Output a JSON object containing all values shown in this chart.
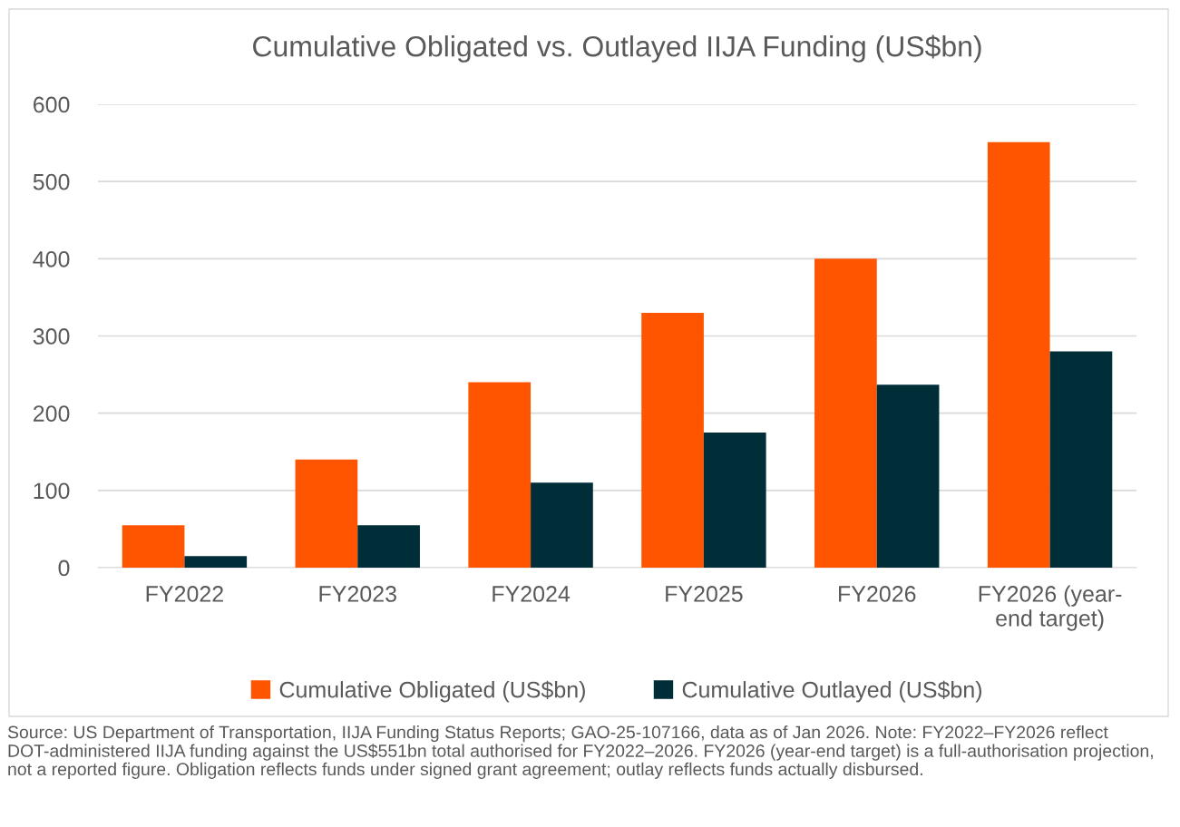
{
  "chart_data": {
    "type": "bar",
    "title": "Cumulative Obligated vs. Outlayed IIJA Funding (US$bn)",
    "categories": [
      "FY2022",
      "FY2023",
      "FY2024",
      "FY2025",
      "FY2026",
      "FY2026 (year-\nend target)"
    ],
    "series": [
      {
        "name": "Cumulative Obligated (US$bn)",
        "color": "#ff5500",
        "values": [
          55,
          140,
          240,
          330,
          400,
          551
        ]
      },
      {
        "name": "Cumulative Outlayed (US$bn)",
        "color": "#002e38",
        "values": [
          15,
          55,
          110,
          175,
          237,
          280
        ]
      }
    ],
    "ylim": [
      0,
      600
    ],
    "yticks": [
      0,
      100,
      200,
      300,
      400,
      500,
      600
    ],
    "grid": "y",
    "legend": "bottom",
    "annotations": [
      "Source: US Department of Transportation, IIJA Funding Status Reports; GAO-25-107166, data as of Jan 2026. Note: FY2022–FY2026 reflect DOT-administered IIJA funding against the US$551bn total authorised for FY2022–2026. FY2026 (year-end target) is a full-authorisation projection, not a reported figure. Obligation reflects funds under signed grant agreement; outlay reflects funds actually disbursed."
    ]
  }
}
